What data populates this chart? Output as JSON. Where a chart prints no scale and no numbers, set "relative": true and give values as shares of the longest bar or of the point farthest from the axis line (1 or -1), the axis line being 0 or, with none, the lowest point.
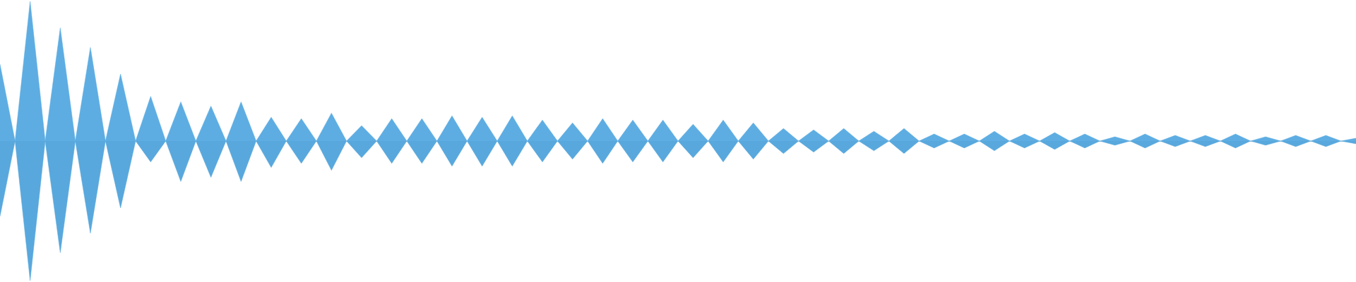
{
  "chart_data": {
    "type": "area",
    "relative": true,
    "categories": [
      null,
      null,
      null,
      null,
      null,
      null,
      null,
      null,
      null,
      null,
      null,
      null,
      null,
      null,
      null,
      null,
      null,
      null,
      null,
      null,
      null,
      null,
      null,
      null,
      null,
      null,
      null,
      null,
      null,
      null,
      null,
      null,
      null,
      null,
      null,
      null,
      null,
      null,
      null,
      null,
      null,
      null,
      null,
      null,
      null,
      null,
      null,
      null,
      null,
      null,
      null,
      null,
      null,
      null,
      null,
      null,
      null,
      null,
      null,
      null,
      null,
      null,
      null,
      null,
      null,
      null,
      null,
      null,
      null,
      null,
      null,
      null,
      null,
      null,
      null,
      null,
      null,
      null,
      null,
      null,
      null,
      null,
      null,
      null,
      null,
      null,
      null,
      null,
      null,
      null,
      null
    ],
    "series": [
      {
        "color": "#5dade2",
        "values": [
          0.55,
          0,
          1.0,
          0,
          0.81,
          0,
          0.67,
          0,
          0.48,
          0,
          0.32,
          0,
          0.28,
          0,
          0.25,
          0,
          0.28,
          0,
          0.17,
          0,
          0.16,
          0,
          0.2,
          0,
          0.11,
          0,
          0.16,
          0,
          0.16,
          0,
          0.18,
          0,
          0.17,
          0,
          0.18,
          0,
          0.15,
          0,
          0.13,
          0,
          0.16,
          0,
          0.15,
          0,
          0.15,
          0,
          0.12,
          0,
          0.15,
          0,
          0.13,
          0,
          0.09,
          0,
          0.08,
          0,
          0.09,
          0,
          0.07,
          0,
          0.09,
          0,
          0.05,
          0,
          0.05,
          0,
          0.07,
          0,
          0.05,
          0,
          0.06,
          0,
          0.05,
          0,
          0.03,
          0,
          0.05,
          0,
          0.04,
          0,
          0.04,
          0,
          0.05,
          0,
          0.03,
          0,
          0.04,
          0,
          0.04,
          0,
          0.02
        ]
      },
      {
        "color": "#58a8dd",
        "values": [
          -0.54,
          0,
          -1.0,
          0,
          -0.8,
          0,
          -0.66,
          0,
          -0.48,
          0,
          -0.15,
          0,
          -0.29,
          0,
          -0.26,
          0,
          -0.29,
          0,
          -0.19,
          0,
          -0.16,
          0,
          -0.21,
          0,
          -0.12,
          0,
          -0.16,
          0,
          -0.16,
          0,
          -0.18,
          0,
          -0.18,
          0,
          -0.18,
          0,
          -0.15,
          0,
          -0.13,
          0,
          -0.16,
          0,
          -0.15,
          0,
          -0.15,
          0,
          -0.12,
          0,
          -0.15,
          0,
          -0.13,
          0,
          -0.09,
          0,
          -0.08,
          0,
          -0.09,
          0,
          -0.07,
          0,
          -0.09,
          0,
          -0.05,
          0,
          -0.05,
          0,
          -0.07,
          0,
          -0.05,
          0,
          -0.06,
          0,
          -0.05,
          0,
          -0.03,
          0,
          -0.05,
          0,
          -0.04,
          0,
          -0.04,
          0,
          -0.05,
          0,
          -0.03,
          0,
          -0.04,
          0,
          -0.04,
          0,
          -0.02
        ]
      }
    ]
  }
}
